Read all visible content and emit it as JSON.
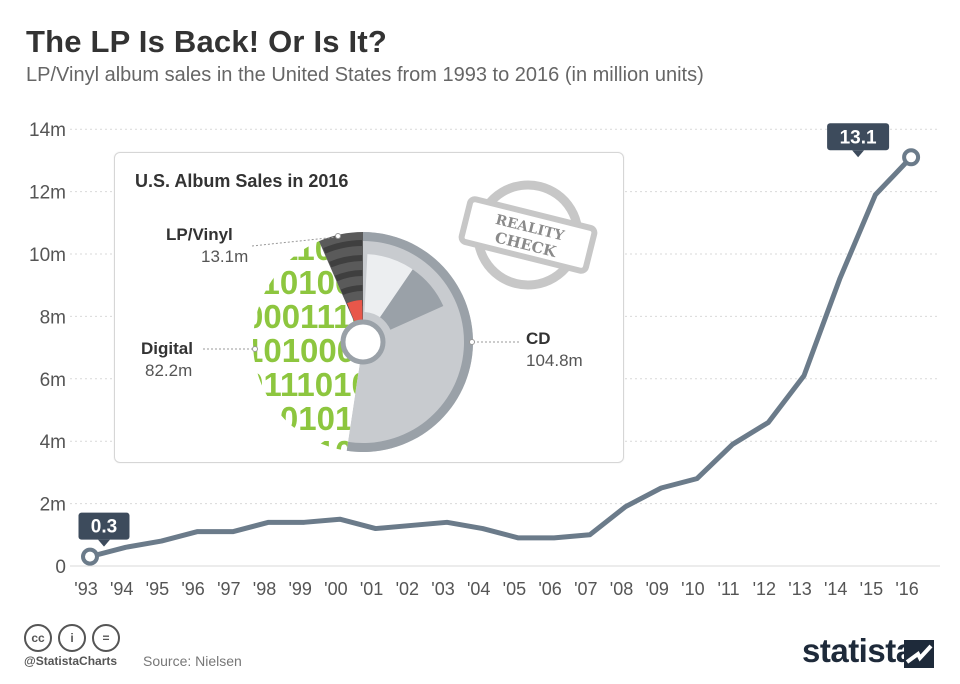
{
  "header": {
    "title": "The LP Is Back! Or Is It?",
    "subtitle": "LP/Vinyl album sales in the United States from 1993 to 2016 (in million units)"
  },
  "chart_data": [
    {
      "type": "line",
      "title": "The LP Is Back! Or Is It?",
      "subtitle": "LP/Vinyl album sales in the United States from 1993 to 2016 (in million units)",
      "x": [
        "'93",
        "'94",
        "'95",
        "'96",
        "'97",
        "'98",
        "'99",
        "'00",
        "'01",
        "'02",
        "'03",
        "'04",
        "'05",
        "'06",
        "'07",
        "'08",
        "'09",
        "'10",
        "'11",
        "'12",
        "'13",
        "'14",
        "'15",
        "'16"
      ],
      "y_ticks": [
        "0",
        "2m",
        "4m",
        "6m",
        "8m",
        "10m",
        "12m",
        "14m"
      ],
      "ylim": [
        0,
        14
      ],
      "series": [
        {
          "values": [
            0.3,
            0.6,
            0.8,
            1.1,
            1.1,
            1.4,
            1.4,
            1.5,
            1.2,
            1.3,
            1.4,
            1.2,
            0.9,
            0.9,
            1.0,
            1.9,
            2.5,
            2.8,
            3.9,
            4.6,
            6.1,
            9.2,
            11.9,
            13.1
          ]
        }
      ],
      "annotations": [
        {
          "label": "0.3",
          "x": "'93",
          "y": 0.3
        },
        {
          "label": "13.1",
          "x": "'16",
          "y": 13.1
        }
      ],
      "grid": true,
      "line_color": "#6b7b8a"
    },
    {
      "type": "pie",
      "title": "U.S. Album Sales in 2016",
      "slices": [
        {
          "name": "CD",
          "value": 104.8,
          "value_label": "104.8m",
          "color": "#c8cbcf"
        },
        {
          "name": "Digital",
          "value": 82.2,
          "value_label": "82.2m",
          "color": "#8dc63f"
        },
        {
          "name": "LP/Vinyl",
          "value": 13.1,
          "value_label": "13.1m",
          "color": "#5a5a5a"
        }
      ]
    }
  ],
  "stamp": {
    "line1": "REALITY",
    "line2": "CHECK"
  },
  "digital_texture": [
    "0111001",
    "1101001",
    "0001110",
    "1010001",
    "0111010",
    "1101011",
    "0110100"
  ],
  "footer": {
    "handle": "@StatistaCharts",
    "source": "Source: Nielsen",
    "brand": "statista",
    "license_icons": [
      "cc",
      "i",
      "="
    ]
  },
  "colors": {
    "line": "#6b7b8a",
    "callout": "#3d4b5c",
    "grid": "#d9d9d9",
    "cd": "#c8cbcf",
    "cd_dark": "#9aa1a8",
    "digital": "#8dc63f",
    "vinyl": "#5a5a5a",
    "accent_red": "#e8574a"
  }
}
